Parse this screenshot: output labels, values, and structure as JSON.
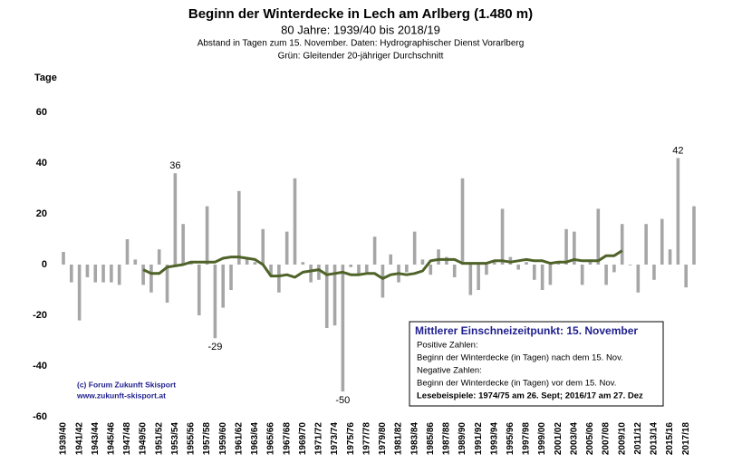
{
  "chart_data": {
    "type": "bar",
    "title": "Beginn der Winterdecke in Lech am Arlberg (1.480 m)",
    "subtitle": "80 Jahre: 1939/40 bis 2018/19",
    "notes": [
      "Abstand in Tagen zum 15. November. Daten: Hydrographischer Dienst Vorarlberg",
      "Grün: Gleitender 20-jähriger Durchschnitt"
    ],
    "y_label": "Tage",
    "categories": [
      "1939/40",
      null,
      "1941/42",
      null,
      "1943/44",
      null,
      "1945/46",
      null,
      "1947/48",
      null,
      "1949/50",
      null,
      "1951/52",
      null,
      "1953/54",
      null,
      "1955/56",
      null,
      "1957/58",
      null,
      "1959/60",
      null,
      "1961/62",
      null,
      "1963/64",
      null,
      "1965/66",
      null,
      "1967/68",
      null,
      "1969/70",
      null,
      "1971/72",
      null,
      "1973/74",
      null,
      "1975/76",
      null,
      "1977/78",
      null,
      "1979/80",
      null,
      "1981/82",
      null,
      "1983/84",
      null,
      "1985/86",
      null,
      "1987/88",
      null,
      "1989/90",
      null,
      "1991/92",
      null,
      "1993/94",
      null,
      "1995/96",
      null,
      "1997/98",
      null,
      "1999/00",
      null,
      "2001/02",
      null,
      "2003/04",
      null,
      "2005/06",
      null,
      "2007/08",
      null,
      "2009/10",
      null,
      "2011/12",
      null,
      "2013/14",
      null,
      "2015/16",
      null,
      "2017/18",
      null
    ],
    "series": [
      {
        "type": "bar",
        "color": "#a6a6a6",
        "values": [
          5,
          -7,
          -22,
          -5,
          -7,
          -7,
          -7,
          -8,
          10,
          2,
          -8,
          -11,
          6,
          -15,
          36,
          16,
          1,
          -20,
          23,
          -29,
          -17,
          -10,
          29,
          3,
          1,
          14,
          -4,
          -11,
          13,
          34,
          1,
          -7,
          -6,
          -25,
          -24,
          -50,
          -1,
          -4,
          -3,
          11,
          -13,
          4,
          -7,
          -3,
          13,
          2,
          -4,
          6,
          3,
          -5,
          34,
          -12,
          -10,
          -4,
          1,
          22,
          3,
          -2,
          1,
          -6,
          -10,
          -8,
          1,
          14,
          13,
          -8,
          2,
          22,
          -8,
          -3,
          16,
          0,
          -11,
          16,
          -6,
          18,
          6,
          42,
          -9,
          23
        ]
      },
      {
        "type": "line",
        "color": "#4f6228",
        "values": [
          null,
          null,
          null,
          null,
          null,
          null,
          null,
          null,
          null,
          null,
          -2,
          -3.5,
          -3.5,
          -1,
          -0.5,
          0,
          1,
          1,
          1,
          1,
          2.5,
          3,
          3,
          2.5,
          2,
          0,
          -4.5,
          -4.5,
          -4,
          -5,
          -3,
          -2.5,
          -2,
          -4,
          -3.5,
          -3,
          -4,
          -4,
          -3.5,
          -3.5,
          -5.5,
          -4,
          -3.5,
          -4,
          -3.5,
          -2.5,
          1.5,
          2,
          2,
          2,
          0.5,
          0.5,
          0.5,
          0.5,
          1.5,
          1.5,
          1,
          1.5,
          2,
          1.5,
          1.5,
          0.5,
          1,
          1,
          2,
          1.5,
          1.5,
          1.5,
          3.5,
          3.5,
          5.5,
          null,
          null,
          null,
          null,
          null,
          null,
          null,
          null,
          null
        ]
      }
    ],
    "ylim": [
      -60,
      60
    ],
    "yticks": [
      -60,
      -40,
      -20,
      0,
      20,
      40,
      60
    ],
    "box": {
      "title": "Mittlerer Einschneizeitpunkt: 15. November",
      "lines": [
        "Positive Zahlen:",
        "Beginn der Winterdecke (in Tagen) nach dem 15. Nov.",
        "Negative Zahlen:",
        "Beginn der Winterdecke (in Tagen) vor dem 15. Nov.",
        "Lesebeispiele: 1974/75 am 26. Sept; 2016/17 am 27. Dez"
      ]
    },
    "credit": [
      "(c) Forum Zukunft Skisport",
      "www.zukunft-skisport.at"
    ]
  }
}
